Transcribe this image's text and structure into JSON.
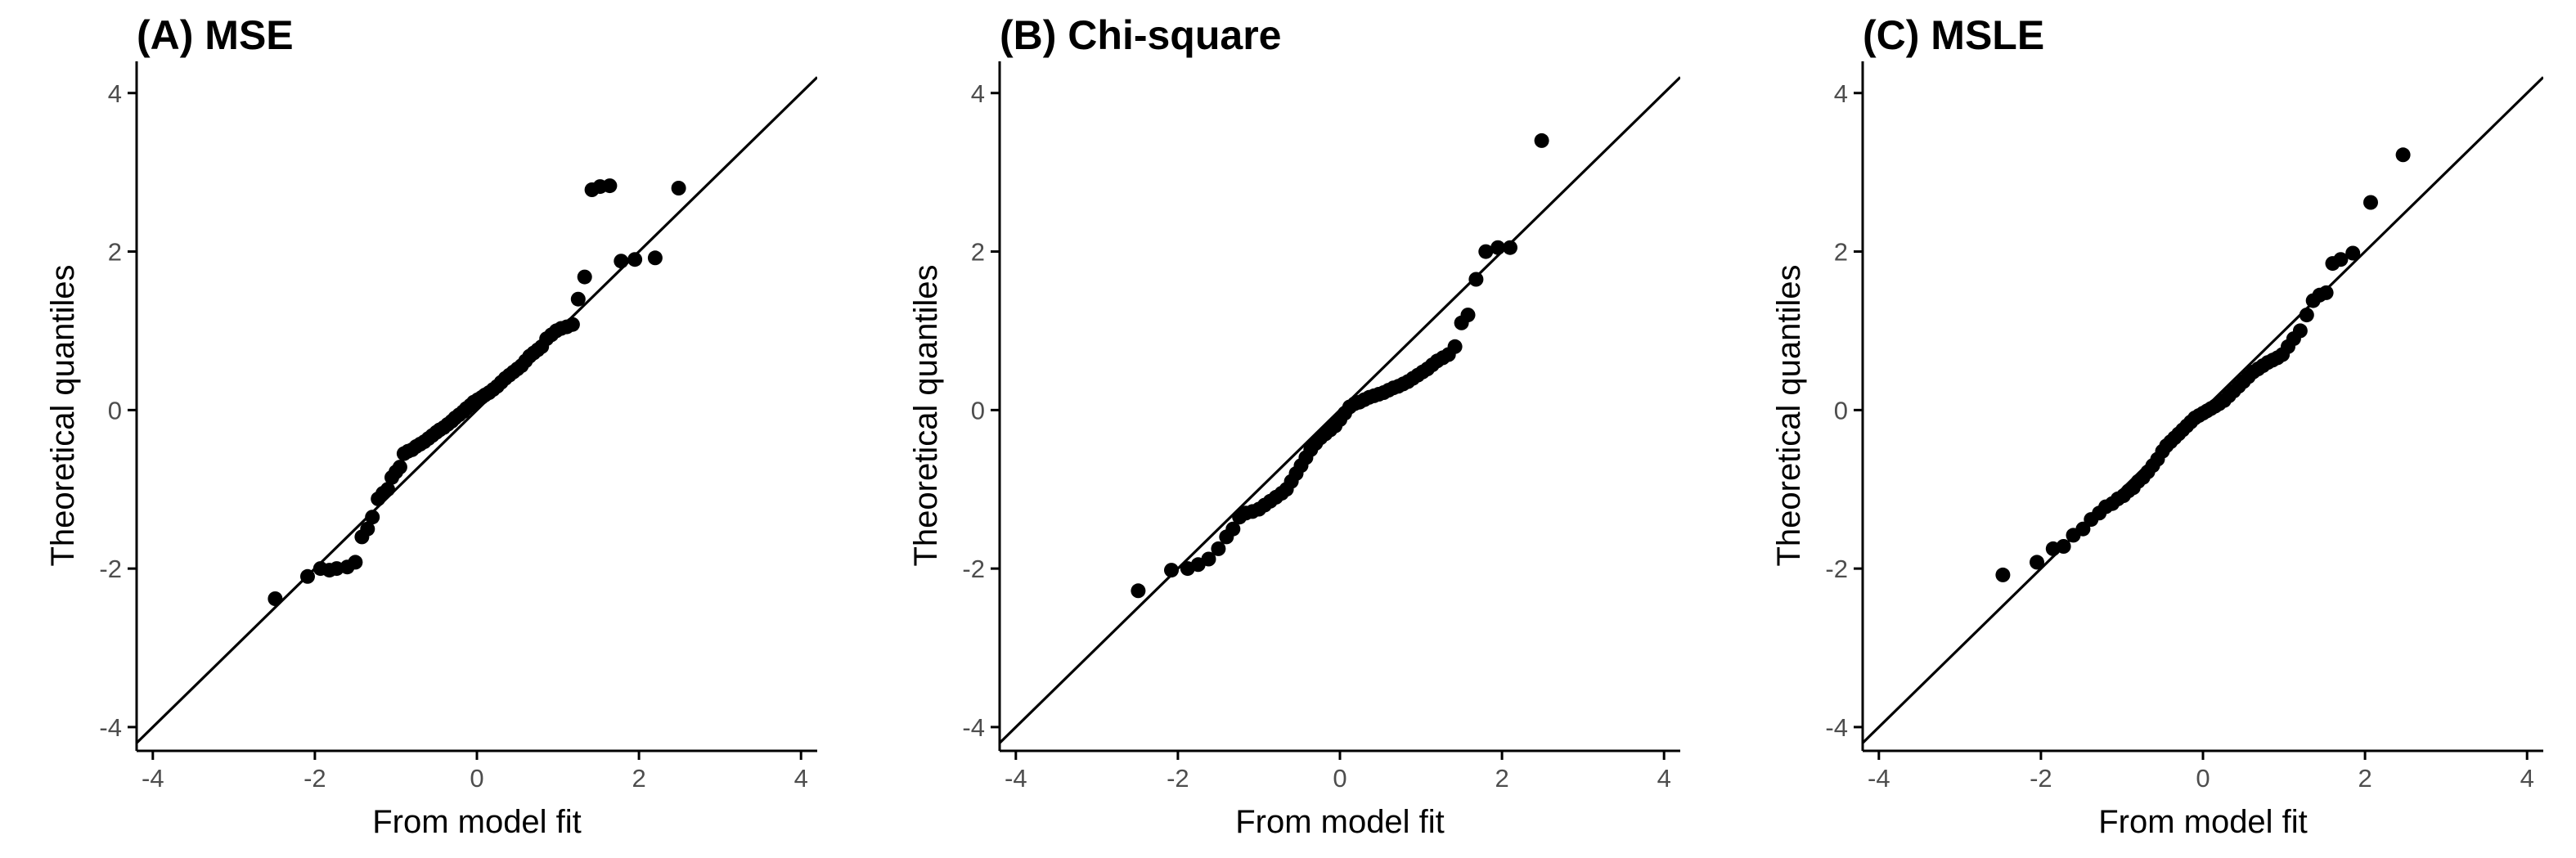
{
  "chart_data": [
    {
      "type": "scatter",
      "title": "(A) MSE",
      "xlabel": "From model fit",
      "ylabel": "Theoretical quantiles",
      "xlim": [
        -4.2,
        4.2
      ],
      "ylim": [
        -4.3,
        4.4
      ],
      "x_ticks": [
        -4,
        -2,
        0,
        2,
        4
      ],
      "y_ticks": [
        -4,
        -2,
        0,
        2,
        4
      ],
      "grid": false,
      "reference_line": "y = x",
      "x": [
        -2.49,
        -2.09,
        -1.93,
        -1.82,
        -1.73,
        -1.6,
        -1.5,
        -1.42,
        -1.35,
        -1.29,
        -1.22,
        -1.16,
        -1.1,
        -1.05,
        -1.0,
        -0.95,
        -0.9,
        -0.85,
        -0.8,
        -0.75,
        -0.7,
        -0.65,
        -0.6,
        -0.55,
        -0.5,
        -0.46,
        -0.41,
        -0.36,
        -0.31,
        -0.27,
        -0.22,
        -0.17,
        -0.13,
        -0.08,
        -0.04,
        0.01,
        0.06,
        0.1,
        0.15,
        0.2,
        0.25,
        0.3,
        0.35,
        0.4,
        0.45,
        0.5,
        0.55,
        0.6,
        0.65,
        0.7,
        0.75,
        0.8,
        0.86,
        0.92,
        0.98,
        1.04,
        1.11,
        1.18,
        1.25,
        1.33,
        1.42,
        1.52,
        1.64,
        1.78,
        1.95,
        2.2,
        2.49
      ],
      "y": [
        -2.38,
        -2.1,
        -2.0,
        -2.02,
        -2.0,
        -1.98,
        -1.92,
        -1.6,
        -1.5,
        -1.35,
        -1.12,
        -1.05,
        -1.0,
        -0.85,
        -0.78,
        -0.72,
        -0.55,
        -0.52,
        -0.5,
        -0.46,
        -0.43,
        -0.4,
        -0.36,
        -0.32,
        -0.28,
        -0.25,
        -0.22,
        -0.18,
        -0.14,
        -0.1,
        -0.06,
        -0.02,
        0.02,
        0.06,
        0.1,
        0.13,
        0.16,
        0.19,
        0.22,
        0.26,
        0.3,
        0.35,
        0.4,
        0.44,
        0.48,
        0.52,
        0.56,
        0.62,
        0.68,
        0.72,
        0.76,
        0.8,
        0.9,
        0.95,
        1.0,
        1.03,
        1.05,
        1.08,
        1.4,
        1.68,
        2.78,
        2.82,
        2.83,
        1.88,
        1.9,
        1.92,
        2.8
      ]
    },
    {
      "type": "scatter",
      "title": "(B) Chi-square",
      "xlabel": "From model fit",
      "ylabel": "Theoretical quantiles",
      "xlim": [
        -4.2,
        4.2
      ],
      "ylim": [
        -4.3,
        4.4
      ],
      "x_ticks": [
        -4,
        -2,
        0,
        2,
        4
      ],
      "y_ticks": [
        -4,
        -2,
        0,
        2,
        4
      ],
      "grid": false,
      "reference_line": "y = x",
      "x": [
        -2.49,
        -2.08,
        -1.88,
        -1.75,
        -1.62,
        -1.5,
        -1.4,
        -1.32,
        -1.24,
        -1.16,
        -1.08,
        -1.0,
        -0.93,
        -0.86,
        -0.79,
        -0.72,
        -0.66,
        -0.6,
        -0.54,
        -0.48,
        -0.42,
        -0.36,
        -0.3,
        -0.24,
        -0.18,
        -0.12,
        -0.06,
        0.0,
        0.06,
        0.12,
        0.18,
        0.24,
        0.3,
        0.36,
        0.42,
        0.48,
        0.54,
        0.6,
        0.66,
        0.72,
        0.78,
        0.84,
        0.9,
        0.96,
        1.02,
        1.08,
        1.14,
        1.2,
        1.27,
        1.34,
        1.42,
        1.5,
        1.58,
        1.68,
        1.8,
        1.95,
        2.1,
        2.49
      ],
      "y": [
        -2.28,
        -2.02,
        -2.0,
        -1.95,
        -1.88,
        -1.75,
        -1.6,
        -1.5,
        -1.35,
        -1.3,
        -1.28,
        -1.25,
        -1.2,
        -1.15,
        -1.1,
        -1.05,
        -1.0,
        -0.9,
        -0.8,
        -0.7,
        -0.6,
        -0.5,
        -0.42,
        -0.35,
        -0.3,
        -0.25,
        -0.2,
        -0.12,
        -0.04,
        0.04,
        0.08,
        0.1,
        0.13,
        0.16,
        0.18,
        0.2,
        0.22,
        0.25,
        0.28,
        0.3,
        0.33,
        0.36,
        0.4,
        0.44,
        0.48,
        0.52,
        0.57,
        0.62,
        0.66,
        0.7,
        0.8,
        1.1,
        1.2,
        1.65,
        2.0,
        2.05,
        2.05,
        3.4
      ]
    },
    {
      "type": "scatter",
      "title": "(C) MSLE",
      "xlabel": "From model fit",
      "ylabel": "Theoretical quantiles",
      "xlim": [
        -4.2,
        4.2
      ],
      "ylim": [
        -4.3,
        4.4
      ],
      "x_ticks": [
        -4,
        -2,
        0,
        2,
        4
      ],
      "y_ticks": [
        -4,
        -2,
        0,
        2,
        4
      ],
      "grid": false,
      "reference_line": "y = x",
      "x": [
        -2.47,
        -2.05,
        -1.85,
        -1.72,
        -1.6,
        -1.48,
        -1.38,
        -1.28,
        -1.2,
        -1.12,
        -1.05,
        -0.98,
        -0.92,
        -0.86,
        -0.8,
        -0.74,
        -0.68,
        -0.62,
        -0.56,
        -0.5,
        -0.45,
        -0.4,
        -0.35,
        -0.3,
        -0.25,
        -0.2,
        -0.15,
        -0.1,
        -0.05,
        0.0,
        0.05,
        0.1,
        0.15,
        0.2,
        0.26,
        0.32,
        0.38,
        0.44,
        0.5,
        0.56,
        0.62,
        0.68,
        0.74,
        0.8,
        0.86,
        0.92,
        0.98,
        1.05,
        1.12,
        1.2,
        1.28,
        1.36,
        1.44,
        1.52,
        1.6,
        1.7,
        1.85,
        2.07,
        2.47
      ],
      "y": [
        -2.08,
        -1.92,
        -1.75,
        -1.72,
        -1.58,
        -1.5,
        -1.38,
        -1.3,
        -1.22,
        -1.18,
        -1.12,
        -1.08,
        -1.02,
        -0.98,
        -0.9,
        -0.85,
        -0.78,
        -0.7,
        -0.62,
        -0.52,
        -0.45,
        -0.4,
        -0.35,
        -0.3,
        -0.25,
        -0.2,
        -0.15,
        -0.1,
        -0.07,
        -0.04,
        -0.01,
        0.02,
        0.05,
        0.08,
        0.12,
        0.18,
        0.24,
        0.3,
        0.36,
        0.42,
        0.48,
        0.52,
        0.56,
        0.6,
        0.63,
        0.66,
        0.7,
        0.8,
        0.9,
        1.0,
        1.2,
        1.38,
        1.45,
        1.48,
        1.85,
        1.9,
        1.98,
        2.62,
        3.22
      ]
    }
  ]
}
